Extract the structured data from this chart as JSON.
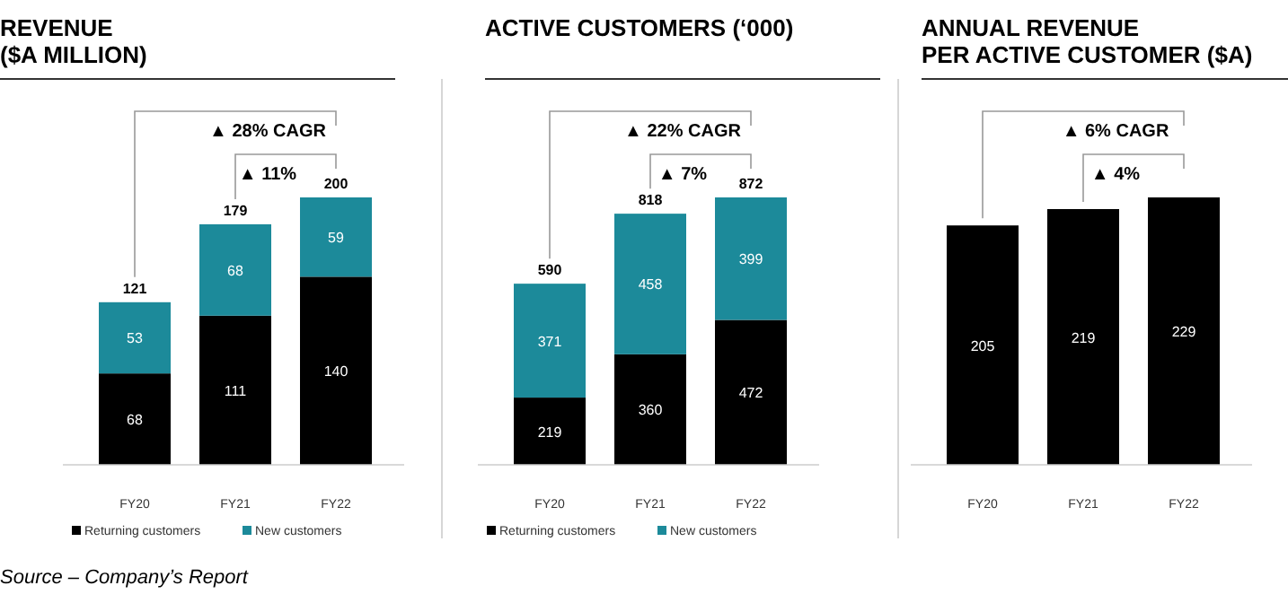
{
  "chart_data": [
    {
      "type": "bar",
      "title": "REVENUE\n($A MILLION)",
      "categories": [
        "FY20",
        "FY21",
        "FY22"
      ],
      "stacked": true,
      "data_labels": true,
      "legend": "bottom",
      "totals": [
        "121",
        "179",
        "200"
      ],
      "series": [
        {
          "name": "Returning customers",
          "color": "#000000",
          "values": [
            68,
            111,
            140
          ]
        },
        {
          "name": "New customers",
          "color": "#1c8a9a",
          "values": [
            53,
            68,
            59
          ]
        }
      ],
      "annotations": [
        "▲ 28% CAGR",
        "▲ 11%",
        "Source – Company’s Report"
      ]
    },
    {
      "type": "bar",
      "title": "ACTIVE CUSTOMERS (‘000)",
      "categories": [
        "FY20",
        "FY21",
        "FY22"
      ],
      "stacked": true,
      "data_labels": true,
      "legend": "bottom",
      "totals": [
        "590",
        "818",
        "872"
      ],
      "series": [
        {
          "name": "Returning customers",
          "color": "#000000",
          "values": [
            219,
            360,
            472
          ]
        },
        {
          "name": "New customers",
          "color": "#1c8a9a",
          "values": [
            371,
            458,
            399
          ]
        }
      ],
      "annotations": [
        "▲ 22% CAGR",
        "▲ 7%"
      ]
    },
    {
      "type": "bar",
      "title": "ANNUAL REVENUE\nPER ACTIVE CUSTOMER ($A)",
      "categories": [
        "FY20",
        "FY21",
        "FY22"
      ],
      "data_labels": true,
      "series": [
        {
          "color": "#000000",
          "values": [
            205,
            219,
            229
          ]
        }
      ],
      "annotations": [
        "▲ 6% CAGR",
        "▲ 4%"
      ]
    }
  ]
}
